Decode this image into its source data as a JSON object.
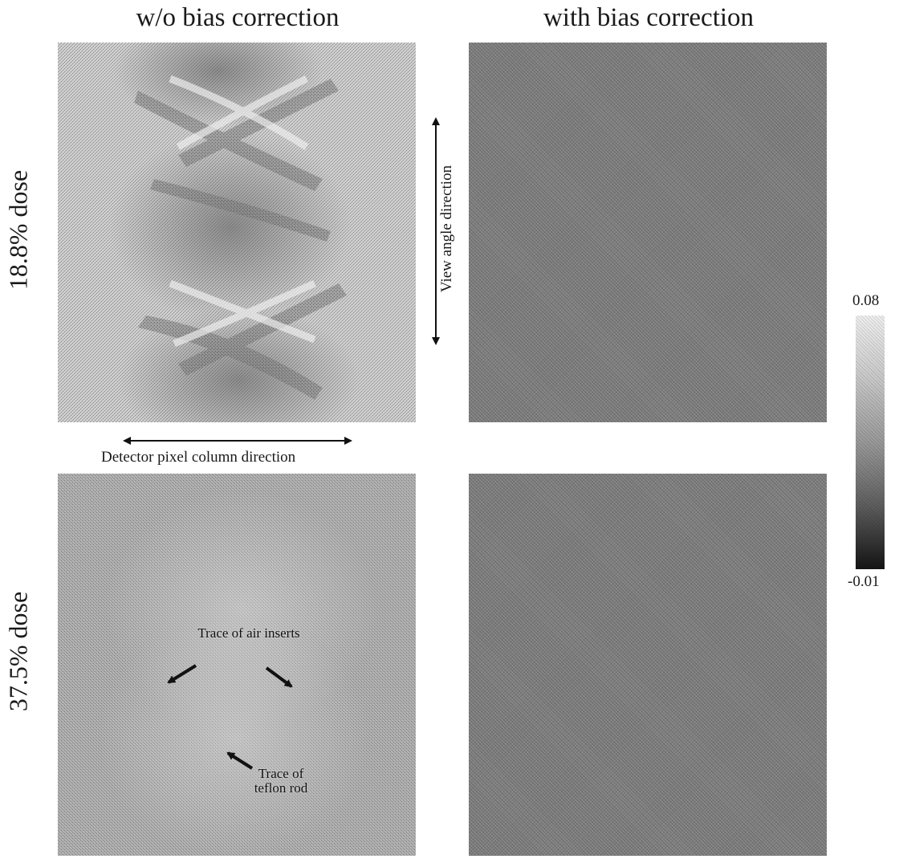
{
  "columns": {
    "left_title": "w/o bias correction",
    "right_title": "with bias correction"
  },
  "rows": {
    "top_label": "18.8% dose",
    "bottom_label": "37.5% dose"
  },
  "axes_annotations": {
    "detector_direction": "Detector pixel column direction",
    "view_direction": "View angle direction"
  },
  "annotations": {
    "air_inserts": "Trace of air inserts",
    "teflon_rod": "Trace of teflon rod"
  },
  "colorbar": {
    "max": "0.08",
    "min": "-0.01",
    "gradient_colors": [
      "#f0f0f0",
      "#9a9a9a",
      "#151515"
    ]
  }
}
